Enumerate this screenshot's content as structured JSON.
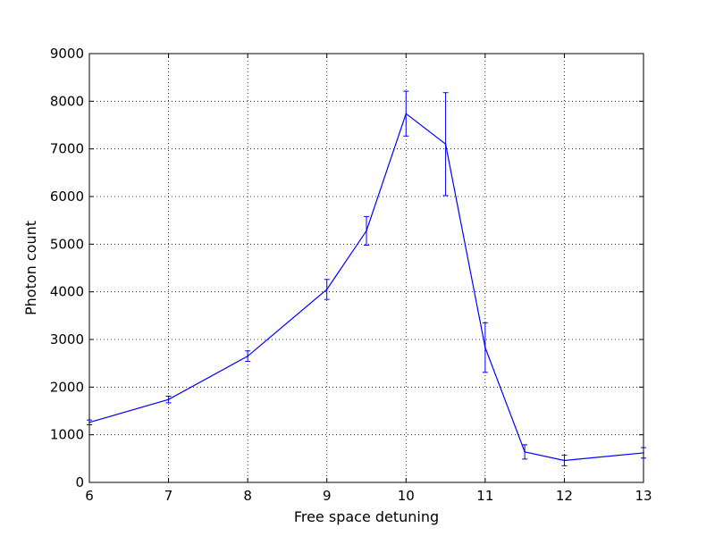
{
  "chart_data": {
    "type": "line",
    "title": "",
    "xlabel": "Free space detuning",
    "ylabel": "Photon count",
    "xlim": [
      6,
      13
    ],
    "ylim": [
      0,
      9000
    ],
    "xticks": [
      6,
      7,
      8,
      9,
      10,
      11,
      12,
      13
    ],
    "yticks": [
      0,
      1000,
      2000,
      3000,
      4000,
      5000,
      6000,
      7000,
      8000,
      9000
    ],
    "grid": true,
    "legend": "none",
    "series": [
      {
        "color": "#0000ff",
        "x": [
          6,
          7,
          8,
          9,
          9.5,
          10,
          10.5,
          11,
          11.5,
          12,
          13
        ],
        "y": [
          1260,
          1740,
          2650,
          4050,
          5280,
          7740,
          7100,
          2830,
          640,
          460,
          620
        ],
        "yerr": [
          50,
          70,
          110,
          210,
          300,
          470,
          1080,
          520,
          150,
          110,
          110
        ]
      }
    ]
  }
}
